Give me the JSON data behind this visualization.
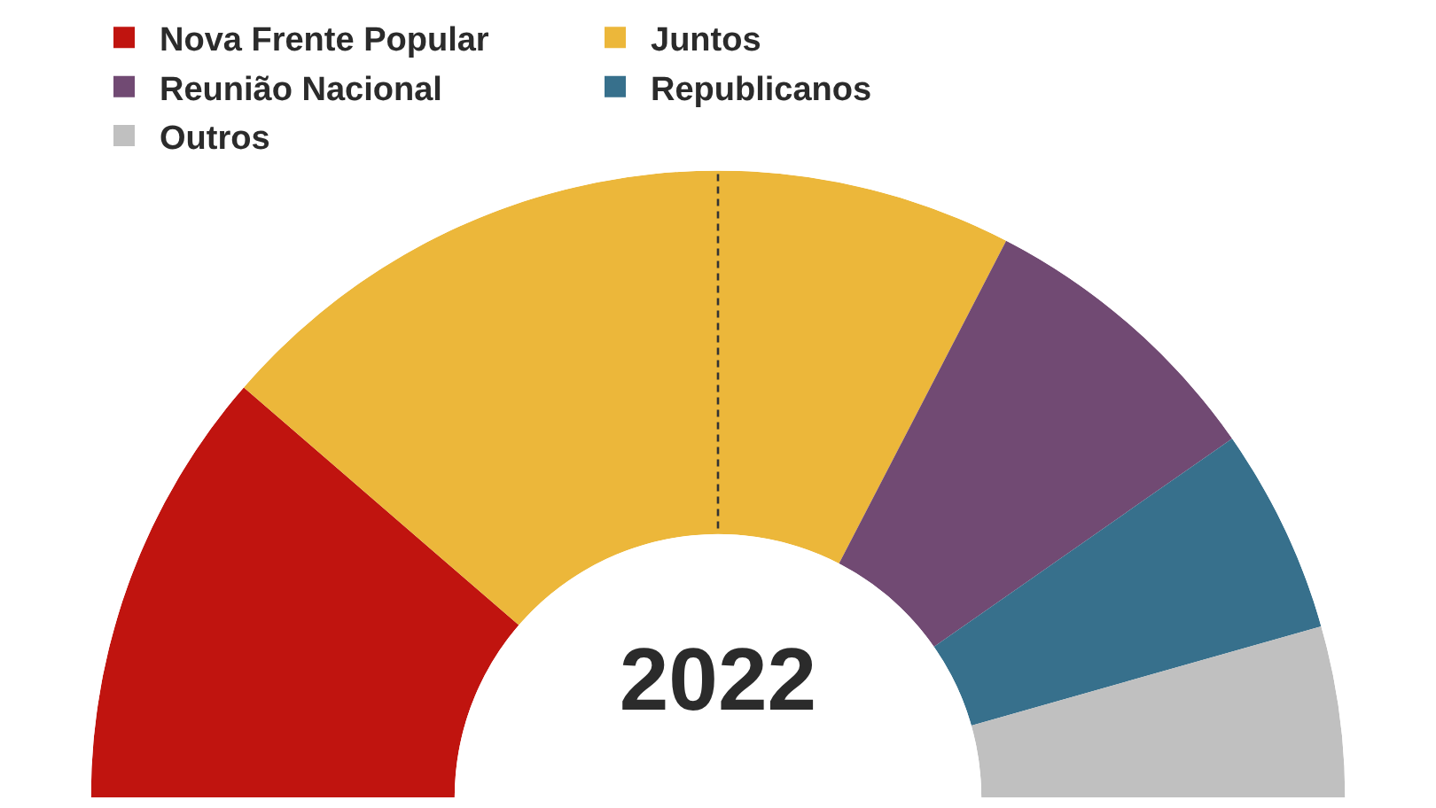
{
  "chart_data": {
    "type": "donut",
    "title": "2022",
    "categories": [
      "Nova Frente Popular",
      "Juntos",
      "Reunião Nacional",
      "Republicanos",
      "Outros"
    ],
    "values": [
      22.7,
      42.5,
      15.4,
      10.6,
      8.8
    ],
    "colors": [
      "#c0140f",
      "#ecb73a",
      "#714a73",
      "#37708c",
      "#c0c0c0"
    ],
    "legend": "top"
  }
}
